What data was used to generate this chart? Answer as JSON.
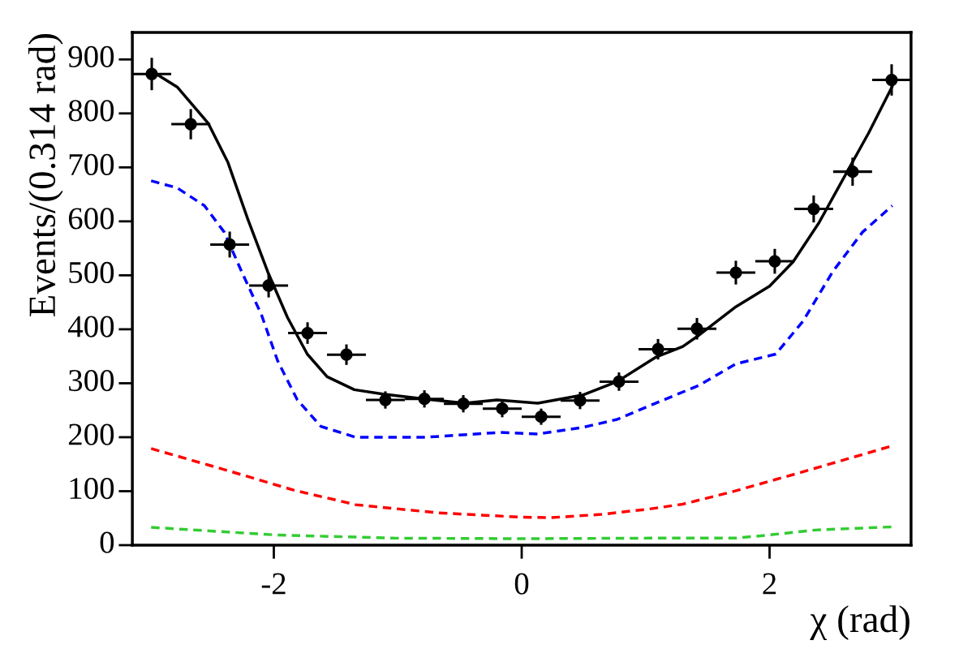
{
  "chart_data": {
    "type": "scatter",
    "xlabel": "χ (rad)",
    "ylabel": "Events/(0.314 rad)",
    "xlim": [
      -3.1416,
      3.1416
    ],
    "ylim": [
      0,
      950
    ],
    "xticks": [
      -2,
      0,
      2
    ],
    "yticks": [
      0,
      100,
      200,
      300,
      400,
      500,
      600,
      700,
      800,
      900
    ],
    "grid": false,
    "legend": false,
    "series": [
      {
        "type": "scatter",
        "color": "#000000",
        "marker": "circle",
        "x": [
          -2.985,
          -2.67,
          -2.356,
          -2.042,
          -1.728,
          -1.414,
          -1.1,
          -0.785,
          -0.471,
          -0.157,
          0.157,
          0.471,
          0.785,
          1.1,
          1.414,
          1.728,
          2.042,
          2.356,
          2.67,
          2.985
        ],
        "values": [
          873,
          780,
          557,
          481,
          393,
          353,
          269,
          271,
          262,
          253,
          238,
          268,
          303,
          363,
          401,
          505,
          526,
          623,
          692,
          862
        ],
        "errors": [
          30,
          28,
          24,
          22,
          20,
          19,
          16,
          16,
          16,
          16,
          15,
          16,
          17,
          19,
          20,
          22,
          23,
          25,
          26,
          29
        ],
        "xerrors": [
          0.157,
          0.157,
          0.157,
          0.157,
          0.157,
          0.157,
          0.157,
          0.157,
          0.157,
          0.157,
          0.157,
          0.157,
          0.157,
          0.157,
          0.157,
          0.157,
          0.157,
          0.157,
          0.157,
          0.157
        ]
      },
      {
        "type": "line",
        "color": "#000000",
        "line_style": "solid",
        "x": [
          -2.99,
          -2.78,
          -2.53,
          -2.37,
          -2.21,
          -2.05,
          -1.89,
          -1.73,
          -1.57,
          -1.35,
          -1.12,
          -0.79,
          -0.46,
          -0.2,
          0.13,
          0.49,
          0.77,
          1.08,
          1.3,
          1.43,
          1.73,
          2.0,
          2.19,
          2.4,
          2.59,
          2.8,
          2.99
        ],
        "values": [
          879,
          849,
          782,
          709,
          604,
          507,
          422,
          354,
          312,
          288,
          280,
          271,
          263,
          269,
          263,
          278,
          303,
          348,
          368,
          389,
          442,
          480,
          525,
          598,
          677,
          764,
          850
        ]
      },
      {
        "type": "line",
        "color": "#0000ff",
        "line_style": "dashed",
        "x": [
          -2.99,
          -2.78,
          -2.56,
          -2.4,
          -2.26,
          -2.1,
          -1.97,
          -1.81,
          -1.62,
          -1.34,
          -0.77,
          -0.17,
          0.13,
          0.49,
          0.77,
          1.08,
          1.43,
          1.73,
          2.05,
          2.27,
          2.51,
          2.75,
          2.99
        ],
        "values": [
          675,
          662,
          629,
          580,
          507,
          427,
          342,
          269,
          220,
          200,
          200,
          209,
          206,
          218,
          233,
          263,
          296,
          336,
          354,
          415,
          507,
          580,
          629
        ]
      },
      {
        "type": "line",
        "color": "#ff0000",
        "line_style": "dashed",
        "x": [
          -2.99,
          -2.37,
          -1.84,
          -1.34,
          -0.68,
          -0.02,
          0.24,
          0.64,
          1.03,
          1.3,
          1.7,
          2.24,
          2.99
        ],
        "values": [
          179,
          138,
          102,
          75,
          60,
          52,
          51,
          57,
          67,
          76,
          99,
          134,
          184
        ]
      },
      {
        "type": "line",
        "color": "#33cc33",
        "line_style": "dashed",
        "x": [
          -2.99,
          -1.99,
          -1.03,
          0.0,
          1.03,
          1.73,
          2.0,
          2.37,
          2.99
        ],
        "values": [
          33,
          19,
          13,
          12,
          13,
          13,
          19,
          28,
          34
        ]
      }
    ]
  }
}
